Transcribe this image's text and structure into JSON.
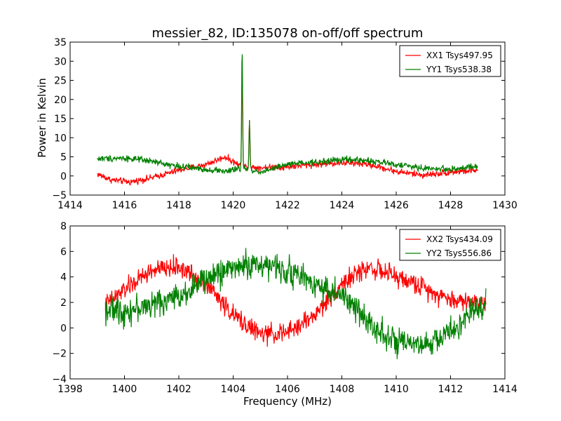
{
  "chart_data": [
    {
      "type": "line",
      "title": "messier_82, ID:135078 on-off/off spectrum",
      "xlabel": "",
      "ylabel": "Power in Kelvin",
      "xlim": [
        1414,
        1430
      ],
      "ylim": [
        -5,
        35
      ],
      "xticks": [
        "1414",
        "1416",
        "1418",
        "1420",
        "1422",
        "1424",
        "1426",
        "1428",
        "1430"
      ],
      "yticks": [
        "−5",
        "0",
        "5",
        "10",
        "15",
        "20",
        "25",
        "30",
        "35"
      ],
      "legend_position": "top-right",
      "series": [
        {
          "name": "XX1 Tsys497.95",
          "color": "#ff0000",
          "x_start": 1415.0,
          "x_end": 1429.0,
          "baseline": [
            [
              1415.0,
              0.5
            ],
            [
              1415.5,
              -1.0
            ],
            [
              1416.2,
              -1.6
            ],
            [
              1417.0,
              -0.5
            ],
            [
              1418.0,
              1.5
            ],
            [
              1419.0,
              3.0
            ],
            [
              1419.7,
              5.0
            ],
            [
              1420.3,
              2.5
            ],
            [
              1421.0,
              2.2
            ],
            [
              1422.0,
              2.4
            ],
            [
              1423.0,
              3.0
            ],
            [
              1424.0,
              3.5
            ],
            [
              1425.0,
              3.0
            ],
            [
              1426.0,
              1.2
            ],
            [
              1427.0,
              0.2
            ],
            [
              1428.0,
              1.0
            ],
            [
              1429.0,
              1.5
            ]
          ],
          "peaks": [
            [
              1420.33,
              28.0
            ],
            [
              1420.6,
              14.8
            ]
          ],
          "noise": 0.6
        },
        {
          "name": "YY1 Tsys538.38",
          "color": "#008000",
          "x_start": 1415.0,
          "x_end": 1429.0,
          "baseline": [
            [
              1415.0,
              4.5
            ],
            [
              1416.0,
              4.7
            ],
            [
              1417.0,
              3.8
            ],
            [
              1418.0,
              2.5
            ],
            [
              1419.0,
              1.7
            ],
            [
              1419.8,
              1.2
            ],
            [
              1420.3,
              2.0
            ],
            [
              1421.0,
              1.0
            ],
            [
              1422.0,
              3.0
            ],
            [
              1423.0,
              3.5
            ],
            [
              1424.0,
              4.3
            ],
            [
              1425.0,
              4.0
            ],
            [
              1426.0,
              3.0
            ],
            [
              1427.0,
              2.0
            ],
            [
              1428.0,
              1.8
            ],
            [
              1429.0,
              2.4
            ]
          ],
          "peaks": [
            [
              1420.33,
              33.5
            ],
            [
              1420.6,
              14.0
            ]
          ],
          "noise": 0.6
        }
      ]
    },
    {
      "type": "line",
      "title": "",
      "xlabel": "Frequency (MHz)",
      "ylabel": "",
      "xlim": [
        1398,
        1414
      ],
      "ylim": [
        -4,
        8
      ],
      "xticks": [
        "1398",
        "1400",
        "1402",
        "1404",
        "1406",
        "1408",
        "1410",
        "1412",
        "1414"
      ],
      "yticks": [
        "−4",
        "−2",
        "0",
        "2",
        "4",
        "6",
        "8"
      ],
      "legend_position": "top-right",
      "series": [
        {
          "name": "XX2 Tsys434.09",
          "color": "#ff0000",
          "x_start": 1399.3,
          "x_end": 1413.3,
          "baseline": [
            [
              1399.3,
              1.8
            ],
            [
              1400.0,
              3.0
            ],
            [
              1401.0,
              4.5
            ],
            [
              1402.0,
              4.8
            ],
            [
              1403.0,
              3.5
            ],
            [
              1404.0,
              1.0
            ],
            [
              1405.0,
              -0.5
            ],
            [
              1406.0,
              -0.4
            ],
            [
              1407.0,
              1.0
            ],
            [
              1408.0,
              3.5
            ],
            [
              1409.0,
              4.8
            ],
            [
              1410.0,
              4.0
            ],
            [
              1411.0,
              3.2
            ],
            [
              1412.0,
              2.2
            ],
            [
              1413.3,
              2.0
            ]
          ],
          "peaks": [],
          "noise": 0.55
        },
        {
          "name": "YY2 Tsys556.86",
          "color": "#008000",
          "x_start": 1399.3,
          "x_end": 1413.3,
          "baseline": [
            [
              1399.3,
              1.5
            ],
            [
              1400.0,
              1.3
            ],
            [
              1401.0,
              1.8
            ],
            [
              1402.0,
              2.5
            ],
            [
              1403.0,
              3.8
            ],
            [
              1404.0,
              4.8
            ],
            [
              1405.0,
              5.0
            ],
            [
              1406.0,
              4.5
            ],
            [
              1407.0,
              3.5
            ],
            [
              1408.0,
              2.5
            ],
            [
              1409.0,
              0.5
            ],
            [
              1410.0,
              -1.2
            ],
            [
              1411.0,
              -1.5
            ],
            [
              1412.0,
              -0.3
            ],
            [
              1413.3,
              2.0
            ]
          ],
          "peaks": [],
          "noise": 0.75
        }
      ]
    }
  ]
}
